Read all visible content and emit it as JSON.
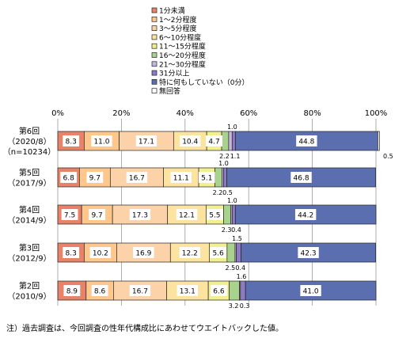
{
  "chart_data": {
    "type": "bar",
    "stacked": true,
    "orientation": "horizontal",
    "xlim": [
      0,
      100
    ],
    "x_ticks": [
      "0%",
      "20%",
      "40%",
      "60%",
      "80%",
      "100%"
    ],
    "grid": true,
    "legend_position": "top",
    "categories": [
      {
        "label": "第6回",
        "sub": "（2020/8）",
        "sub2": "（n=10234）"
      },
      {
        "label": "第5回",
        "sub": "（2017/9）",
        "sub2": ""
      },
      {
        "label": "第4回",
        "sub": "（2014/9）",
        "sub2": ""
      },
      {
        "label": "第3回",
        "sub": "（2012/9）",
        "sub2": ""
      },
      {
        "label": "第2回",
        "sub": "（2010/9）",
        "sub2": ""
      }
    ],
    "series": [
      {
        "name": "1分未満",
        "color": "#e8836a",
        "values": [
          8.3,
          6.8,
          7.5,
          8.3,
          8.9
        ]
      },
      {
        "name": "1～2分程度",
        "color": "#ffc78c",
        "values": [
          11.0,
          9.7,
          9.7,
          10.2,
          8.6
        ]
      },
      {
        "name": "3～5分程度",
        "color": "#fcd2a8",
        "values": [
          17.1,
          16.7,
          17.3,
          16.9,
          16.7
        ]
      },
      {
        "name": "6～10分程度",
        "color": "#fde3a0",
        "values": [
          10.4,
          11.1,
          12.1,
          12.2,
          13.1
        ]
      },
      {
        "name": "11～15分程度",
        "color": "#f2f08e",
        "values": [
          4.7,
          5.1,
          5.5,
          5.6,
          6.6
        ]
      },
      {
        "name": "16～20分程度",
        "color": "#a9d28c",
        "values": [
          2.2,
          2.2,
          2.3,
          2.5,
          3.2
        ]
      },
      {
        "name": "21～30分程度",
        "color": "#c9b6e0",
        "values": [
          1.1,
          0.5,
          0.4,
          0.4,
          0.3
        ]
      },
      {
        "name": "31分以上",
        "color": "#8d7ac2",
        "values": [
          1.0,
          1.0,
          1.0,
          1.5,
          1.6
        ]
      },
      {
        "name": "特に何もしていない（0分）",
        "color": "#5b6fb0",
        "values": [
          44.8,
          46.8,
          44.2,
          42.3,
          41.0
        ]
      },
      {
        "name": "無回答",
        "color": "#ffffff",
        "values": [
          0.5,
          0.0,
          0.0,
          0.0,
          0.0
        ]
      }
    ],
    "note": "注）過去調査は、今回調査の性年代構成比にあわせてウエイトバックした値。"
  }
}
